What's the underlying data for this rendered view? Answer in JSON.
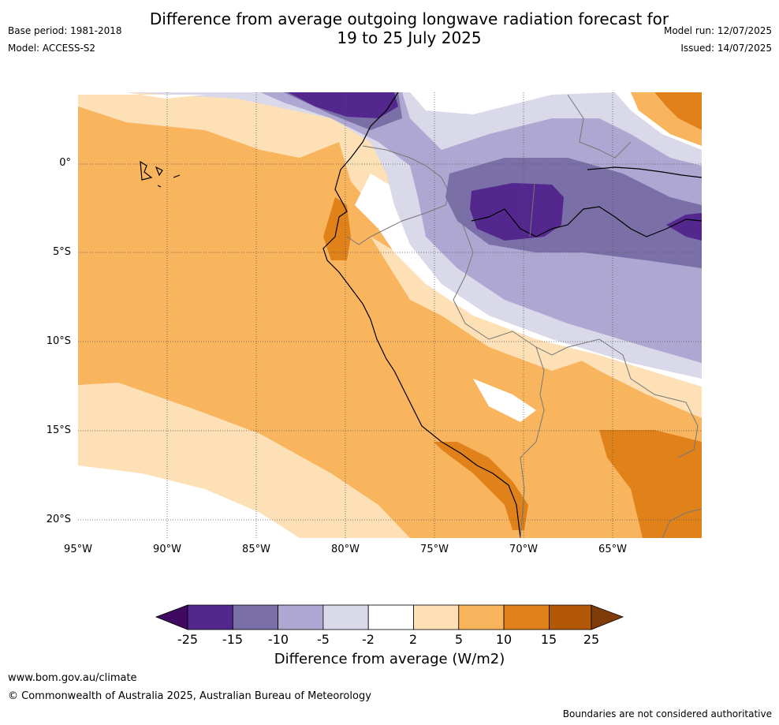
{
  "header": {
    "title_line1": "Difference from average outgoing longwave radiation forecast for",
    "title_line2": "19 to 25 July 2025",
    "base_period": "Base period: 1981-2018",
    "model": "Model: ACCESS-S2",
    "model_run": "Model run: 12/07/2025",
    "issued": "Issued: 14/07/2025"
  },
  "map": {
    "lat_labels": [
      "0°",
      "5°S",
      "10°S",
      "15°S",
      "20°S"
    ],
    "lon_labels": [
      "95°W",
      "90°W",
      "85°W",
      "80°W",
      "75°W",
      "70°W",
      "65°W"
    ]
  },
  "colorbar": {
    "ticks": [
      "-25",
      "-15",
      "-10",
      "-5",
      "-2",
      "2",
      "5",
      "10",
      "15",
      "25"
    ],
    "colors": [
      "#3f0a5f",
      "#54278f",
      "#7b6fa8",
      "#aea7d1",
      "#d9d9ea",
      "#ffffff",
      "#fde0b5",
      "#f9b45e",
      "#e08219",
      "#b35807",
      "#7f3b08"
    ],
    "title": "Difference from average (W/m2)"
  },
  "footer": {
    "url": "www.bom.gov.au/climate",
    "copyright": "© Commonwealth of Australia 2025, Australian Bureau of Meteorology",
    "disclaimer": "Boundaries are not considered authoritative"
  }
}
